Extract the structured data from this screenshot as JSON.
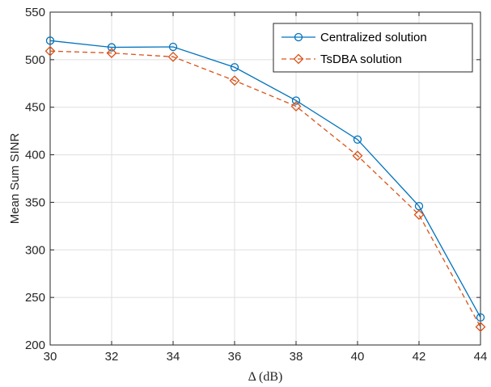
{
  "chart_data": {
    "type": "line",
    "xlabel": "Δ (dB)",
    "ylabel": "Mean Sum SINR",
    "xlim": [
      30,
      44
    ],
    "ylim": [
      200,
      550
    ],
    "xticks": [
      30,
      32,
      34,
      36,
      38,
      40,
      42,
      44
    ],
    "yticks": [
      200,
      250,
      300,
      350,
      400,
      450,
      500,
      550
    ],
    "grid": true,
    "legend_position": "top-right",
    "x": [
      30,
      32,
      34,
      36,
      38,
      40,
      42,
      44
    ],
    "series": [
      {
        "name": "Centralized solution",
        "values": [
          520,
          513,
          513.5,
          492,
          457,
          416,
          346,
          229
        ],
        "color": "#0072BD",
        "line_style": "solid",
        "marker": "circle"
      },
      {
        "name": "TsDBA solution",
        "values": [
          509,
          507,
          503,
          478,
          451,
          399,
          337,
          219
        ],
        "color": "#D95319",
        "line_style": "dashed",
        "marker": "diamond"
      }
    ]
  }
}
